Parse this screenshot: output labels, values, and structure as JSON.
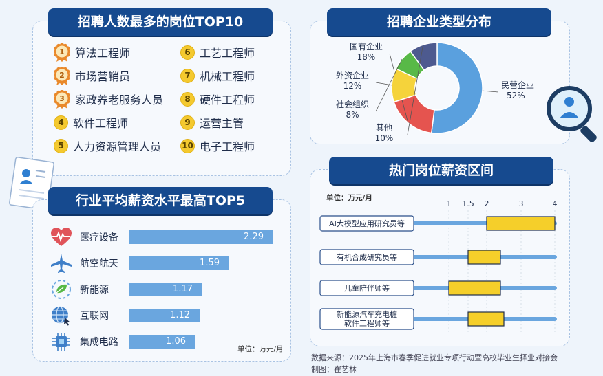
{
  "top10": {
    "title": "招聘人数最多的岗位TOP10",
    "items": [
      {
        "rank": "1",
        "label": "算法工程师"
      },
      {
        "rank": "2",
        "label": "市场营销员"
      },
      {
        "rank": "3",
        "label": "家政养老服务人员"
      },
      {
        "rank": "4",
        "label": "软件工程师"
      },
      {
        "rank": "5",
        "label": "人力资源管理人员"
      },
      {
        "rank": "6",
        "label": "工艺工程师"
      },
      {
        "rank": "7",
        "label": "机械工程师"
      },
      {
        "rank": "8",
        "label": "硬件工程师"
      },
      {
        "rank": "9",
        "label": "运营主管"
      },
      {
        "rank": "10",
        "label": "电子工程师"
      }
    ]
  },
  "pie": {
    "title": "招聘企业类型分布"
  },
  "industry": {
    "title": "行业平均薪资水平最高TOP5",
    "unit": "单位：万元/月"
  },
  "salary": {
    "title": "热门岗位薪资区间",
    "unit": "单位：万元/月"
  },
  "footer": {
    "source": "数据来源：2025年上海市春季促进就业专项行动暨高校毕业生择业对接会",
    "author": "制图：崔艺林"
  },
  "colors": {
    "navy": "#164a8f",
    "bar_blue": "#6aa6df",
    "range_yellow": "#f5cf2a",
    "badge_yellow": "#f4c92f"
  },
  "chart_data": [
    {
      "type": "pie",
      "categories": [
        "民营企业",
        "国有企业",
        "外资企业",
        "社会组织",
        "其他"
      ],
      "values": [
        52,
        18,
        12,
        8,
        10
      ],
      "value_labels": [
        "52%",
        "18%",
        "12%",
        "8%",
        "10%"
      ],
      "colors": [
        "#5aa0de",
        "#e5544f",
        "#f5d33b",
        "#58b947",
        "#4d5a8f"
      ],
      "donut": true
    },
    {
      "type": "bar",
      "orientation": "horizontal",
      "categories": [
        "医疗设备",
        "航空航天",
        "新能源",
        "互联网",
        "集成电路"
      ],
      "icons": [
        "heart-pulse-icon",
        "airplane-icon",
        "leaf-icon",
        "globe-icon",
        "chip-icon"
      ],
      "values": [
        2.29,
        1.59,
        1.17,
        1.12,
        1.06
      ],
      "value_labels": [
        "2.29",
        "1.59",
        "1.17",
        "1.12",
        "1.06"
      ],
      "xlim": [
        0,
        2.29
      ]
    },
    {
      "type": "range",
      "categories": [
        "AI大模型应用研究员等",
        "有机合成研究员等",
        "儿童陪伴师等",
        "新能源汽车充电桩 软件工程师等"
      ],
      "low": [
        2.0,
        1.5,
        1.0,
        1.5
      ],
      "high": [
        4.0,
        2.4,
        2.4,
        2.5
      ],
      "x_ticks": [
        1,
        1.5,
        2,
        3,
        4
      ],
      "x_tick_labels": [
        "1",
        "1.5",
        "2",
        "3",
        "4"
      ],
      "xlim": [
        1,
        4
      ]
    }
  ]
}
